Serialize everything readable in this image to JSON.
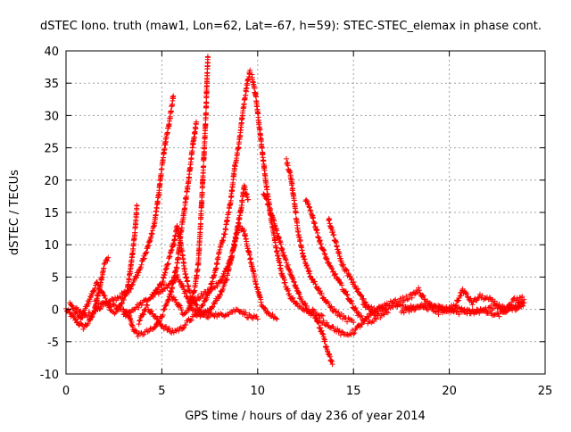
{
  "chart_data": {
    "type": "scatter",
    "title": "dSTEC Iono. truth (maw1, Lon=62, Lat=-67, h=59): STEC-STEC_elemax in phase cont.",
    "xlabel": "GPS time / hours of day 236 of year 2014",
    "ylabel": "dSTEC  / TECUs",
    "xlim": [
      0,
      25
    ],
    "ylim": [
      -10,
      40
    ],
    "xticks": [
      "0",
      "5",
      "10",
      "15",
      "20",
      "25"
    ],
    "yticks": [
      "-10",
      "-5",
      "0",
      "5",
      "10",
      "15",
      "20",
      "25",
      "30",
      "35",
      "40"
    ],
    "grid": true,
    "marker": "+",
    "color": "#ff0000",
    "series": [
      {
        "points": [
          [
            0,
            0
          ],
          [
            0.3,
            -1
          ],
          [
            0.6,
            -2
          ],
          [
            0.9,
            -2.8
          ],
          [
            1.2,
            -2
          ],
          [
            1.5,
            0
          ],
          [
            1.8,
            4
          ],
          [
            2.0,
            7
          ],
          [
            2.2,
            8
          ]
        ]
      },
      {
        "points": [
          [
            0.2,
            1
          ],
          [
            0.5,
            -0.5
          ],
          [
            0.8,
            -1.5
          ],
          [
            1.0,
            0
          ],
          [
            1.3,
            2
          ],
          [
            1.6,
            4
          ],
          [
            1.8,
            3
          ],
          [
            2.0,
            2
          ],
          [
            2.3,
            0
          ],
          [
            2.6,
            -0.5
          ],
          [
            2.9,
            1
          ],
          [
            3.2,
            3
          ],
          [
            3.4,
            7
          ],
          [
            3.6,
            12
          ],
          [
            3.7,
            16
          ]
        ]
      },
      {
        "points": [
          [
            0.5,
            0
          ],
          [
            1,
            -1
          ],
          [
            1.5,
            -0.5
          ],
          [
            2,
            1
          ],
          [
            2.5,
            0.5
          ],
          [
            3,
            0
          ],
          [
            3.3,
            -1
          ],
          [
            3.5,
            -3
          ],
          [
            3.8,
            -4
          ],
          [
            4.2,
            -3.5
          ],
          [
            4.6,
            -3
          ],
          [
            5,
            -1
          ],
          [
            5.3,
            1
          ],
          [
            5.5,
            3
          ],
          [
            5.8,
            7
          ],
          [
            6.0,
            12
          ],
          [
            6.2,
            16
          ],
          [
            6.4,
            20
          ],
          [
            6.6,
            25
          ],
          [
            6.8,
            29
          ]
        ]
      },
      {
        "points": [
          [
            1.5,
            1
          ],
          [
            2.2,
            1
          ],
          [
            2.8,
            2
          ],
          [
            3.3,
            3
          ],
          [
            3.8,
            6
          ],
          [
            4.2,
            9
          ],
          [
            4.6,
            13
          ],
          [
            4.8,
            17
          ],
          [
            5.0,
            22
          ],
          [
            5.2,
            26
          ],
          [
            5.4,
            29
          ],
          [
            5.6,
            33
          ]
        ]
      },
      {
        "points": [
          [
            3,
            -1
          ],
          [
            3.5,
            0
          ],
          [
            4,
            1
          ],
          [
            4.5,
            2
          ],
          [
            5,
            4
          ],
          [
            5.3,
            7
          ],
          [
            5.6,
            10
          ],
          [
            5.8,
            13
          ],
          [
            6.0,
            10
          ],
          [
            6.2,
            6
          ],
          [
            6.5,
            2
          ],
          [
            7,
            -0.5
          ],
          [
            7.5,
            -1
          ]
        ]
      },
      {
        "points": [
          [
            3.8,
            -2
          ],
          [
            4.2,
            0.5
          ],
          [
            4.6,
            -1
          ],
          [
            5.0,
            -2.5
          ],
          [
            5.5,
            -3.5
          ],
          [
            6.0,
            -3
          ],
          [
            6.5,
            -1.5
          ],
          [
            7.0,
            -0.5
          ],
          [
            7.5,
            -0.5
          ],
          [
            8,
            -1
          ],
          [
            8.5,
            -0.5
          ],
          [
            9,
            0
          ],
          [
            9.5,
            -1
          ],
          [
            10,
            -1.5
          ]
        ]
      },
      {
        "points": [
          [
            4.5,
            2
          ],
          [
            5,
            3
          ],
          [
            5.5,
            4
          ],
          [
            5.8,
            5
          ],
          [
            6,
            4
          ],
          [
            6.3,
            2
          ],
          [
            6.6,
            0
          ],
          [
            6.9,
            -0.5
          ],
          [
            7.2,
            1
          ],
          [
            7.5,
            3
          ],
          [
            7.8,
            6
          ],
          [
            8.0,
            9
          ],
          [
            8.3,
            12
          ],
          [
            8.6,
            17
          ],
          [
            8.8,
            22
          ],
          [
            9.0,
            25
          ],
          [
            9.2,
            30
          ],
          [
            9.4,
            34
          ],
          [
            9.6,
            37
          ]
        ]
      },
      {
        "points": [
          [
            5.5,
            2
          ],
          [
            5.8,
            1
          ],
          [
            6.1,
            -0.5
          ],
          [
            6.4,
            0
          ],
          [
            6.7,
            3
          ],
          [
            6.9,
            7
          ],
          [
            7.0,
            12
          ],
          [
            7.1,
            18
          ],
          [
            7.2,
            24
          ],
          [
            7.3,
            30
          ],
          [
            7.35,
            35
          ],
          [
            7.4,
            39
          ]
        ]
      },
      {
        "points": [
          [
            6.5,
            1
          ],
          [
            7,
            2
          ],
          [
            7.5,
            3
          ],
          [
            8,
            4
          ],
          [
            8.5,
            7
          ],
          [
            8.8,
            10
          ],
          [
            9.0,
            13
          ],
          [
            9.3,
            12
          ],
          [
            9.6,
            8
          ],
          [
            9.9,
            4
          ],
          [
            10.2,
            1
          ],
          [
            10.5,
            -0.5
          ],
          [
            11,
            -1.5
          ]
        ]
      },
      {
        "points": [
          [
            7.0,
            -1
          ],
          [
            7.5,
            0
          ],
          [
            8,
            2
          ],
          [
            8.4,
            5
          ],
          [
            8.7,
            9
          ],
          [
            8.9,
            12
          ],
          [
            9.1,
            15
          ],
          [
            9.3,
            19
          ],
          [
            9.5,
            17
          ]
        ]
      },
      {
        "points": [
          [
            9.7,
            36
          ],
          [
            9.9,
            33
          ],
          [
            10.1,
            28
          ],
          [
            10.3,
            23
          ],
          [
            10.5,
            18
          ],
          [
            10.7,
            14
          ],
          [
            11.0,
            9
          ],
          [
            11.3,
            5
          ],
          [
            11.7,
            2
          ],
          [
            12.1,
            0.5
          ],
          [
            12.5,
            0
          ],
          [
            13,
            -1
          ],
          [
            13.4,
            -4
          ],
          [
            13.7,
            -7
          ],
          [
            13.9,
            -8.5
          ]
        ]
      },
      {
        "points": [
          [
            10.3,
            18
          ],
          [
            10.6,
            16
          ],
          [
            11,
            12
          ],
          [
            11.4,
            8
          ],
          [
            11.8,
            5
          ],
          [
            12.2,
            2
          ],
          [
            12.6,
            0
          ],
          [
            13.0,
            -0.5
          ],
          [
            13.4,
            -1
          ]
        ]
      },
      {
        "points": [
          [
            11.5,
            23
          ],
          [
            11.7,
            21
          ],
          [
            11.9,
            17
          ],
          [
            12.1,
            12
          ],
          [
            12.4,
            8
          ],
          [
            12.8,
            5
          ],
          [
            13.2,
            3
          ],
          [
            13.6,
            1
          ],
          [
            14.1,
            -0.5
          ],
          [
            14.6,
            -1.5
          ],
          [
            15,
            -2
          ]
        ]
      },
      {
        "points": [
          [
            12.5,
            17
          ],
          [
            12.8,
            15
          ],
          [
            13,
            13
          ],
          [
            13.3,
            10
          ],
          [
            13.7,
            7
          ],
          [
            14.1,
            5
          ],
          [
            14.5,
            3
          ],
          [
            14.9,
            1
          ],
          [
            15.3,
            -1
          ],
          [
            15.8,
            -2
          ],
          [
            16.2,
            -1.5
          ]
        ]
      },
      {
        "points": [
          [
            13.7,
            14
          ],
          [
            13.9,
            12
          ],
          [
            14.1,
            10
          ],
          [
            14.4,
            7
          ],
          [
            14.8,
            5
          ],
          [
            15.2,
            3
          ],
          [
            15.6,
            1
          ],
          [
            16.0,
            -0.5
          ],
          [
            16.4,
            -1
          ],
          [
            16.8,
            -0.5
          ]
        ]
      },
      {
        "points": [
          [
            13.0,
            -1.5
          ],
          [
            13.5,
            -2
          ],
          [
            14,
            -3
          ],
          [
            14.5,
            -4
          ],
          [
            15,
            -3.5
          ],
          [
            15.5,
            -2
          ],
          [
            16,
            -0.5
          ],
          [
            16.5,
            0.5
          ],
          [
            17,
            1
          ],
          [
            17.5,
            1.5
          ],
          [
            18,
            2
          ],
          [
            18.4,
            3
          ],
          [
            18.8,
            1
          ],
          [
            19.3,
            0.5
          ],
          [
            19.8,
            0
          ],
          [
            20.3,
            0.5
          ],
          [
            20.7,
            3
          ],
          [
            21.2,
            1
          ],
          [
            21.6,
            2
          ],
          [
            22.1,
            1.5
          ],
          [
            22.6,
            0.5
          ],
          [
            23.0,
            -0.5
          ],
          [
            23.5,
            0.5
          ],
          [
            23.9,
            1.5
          ]
        ]
      },
      {
        "points": [
          [
            15.5,
            0.5
          ],
          [
            16,
            0
          ],
          [
            16.5,
            0
          ],
          [
            17,
            0.5
          ],
          [
            17.5,
            0.5
          ],
          [
            18,
            0.5
          ],
          [
            18.5,
            0.5
          ],
          [
            19,
            0.5
          ],
          [
            19.5,
            0
          ],
          [
            20,
            0
          ],
          [
            20.5,
            -0.5
          ],
          [
            21,
            -0.5
          ],
          [
            21.5,
            0
          ],
          [
            22,
            -0.5
          ],
          [
            22.5,
            -1
          ],
          [
            23,
            0
          ],
          [
            23.4,
            1.5
          ],
          [
            23.8,
            2
          ]
        ]
      },
      {
        "points": [
          [
            17.5,
            -0.5
          ],
          [
            18.5,
            0.5
          ],
          [
            19.5,
            -0.5
          ],
          [
            20.5,
            0
          ],
          [
            21.5,
            -0.5
          ],
          [
            22.5,
            0.5
          ],
          [
            23.5,
            0
          ],
          [
            23.9,
            1
          ]
        ]
      }
    ]
  }
}
